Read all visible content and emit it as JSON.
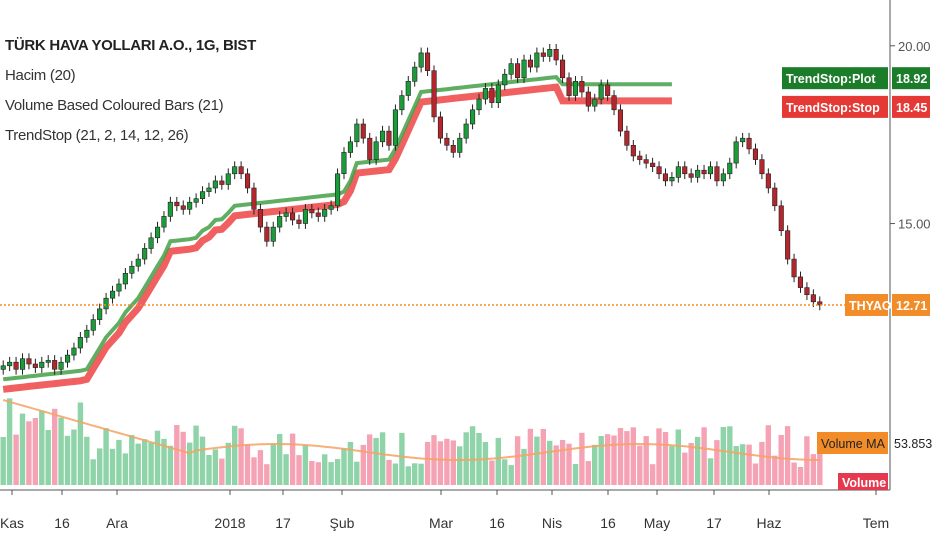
{
  "chart_data": {
    "type": "candlestick",
    "symbol_title": "TÜRK HAVA YOLLARI A.O., 1G, BIST",
    "legend": [
      "Hacim (20)",
      "Volume Based Coloured Bars (21)",
      "TrendStop (21, 2, 14, 12, 26)"
    ],
    "x_labels": [
      "Kas",
      "16",
      "Ara",
      "2018",
      "17",
      "Şub",
      "Mar",
      "16",
      "Nis",
      "16",
      "May",
      "17",
      "Haz",
      "Tem"
    ],
    "price_ticks": [
      "20.00",
      "15.00"
    ],
    "price_ylim": [
      11.5,
      20.5
    ],
    "last_price": 12.71,
    "price_series": [
      11.0,
      11.1,
      10.9,
      11.2,
      11.05,
      10.95,
      11.1,
      11.15,
      10.9,
      11.1,
      11.3,
      11.5,
      11.8,
      12.0,
      12.3,
      12.6,
      12.9,
      13.1,
      13.3,
      13.6,
      13.8,
      14.0,
      14.3,
      14.6,
      14.9,
      15.2,
      15.6,
      15.5,
      15.4,
      15.6,
      15.7,
      15.9,
      16.0,
      16.2,
      16.1,
      16.4,
      16.6,
      16.4,
      16.0,
      15.4,
      14.9,
      14.5,
      14.9,
      15.2,
      15.3,
      15.1,
      15.0,
      15.4,
      15.3,
      15.2,
      15.4,
      15.5,
      16.4,
      17.0,
      17.3,
      17.8,
      17.4,
      16.8,
      17.3,
      17.6,
      17.2,
      18.2,
      18.6,
      19.0,
      19.4,
      19.8,
      19.3,
      18.0,
      17.4,
      17.2,
      17.0,
      17.4,
      17.8,
      18.2,
      18.5,
      18.8,
      18.4,
      18.9,
      19.2,
      19.5,
      19.1,
      19.6,
      19.4,
      19.8,
      19.7,
      19.9,
      19.6,
      19.1,
      18.6,
      19.0,
      18.7,
      18.3,
      18.5,
      18.9,
      18.6,
      18.2,
      17.6,
      17.2,
      16.9,
      16.8,
      16.7,
      16.6,
      16.4,
      16.2,
      16.3,
      16.6,
      16.4,
      16.3,
      16.5,
      16.4,
      16.6,
      16.2,
      16.4,
      16.7,
      17.3,
      17.4,
      17.1,
      16.8,
      16.4,
      16.0,
      15.5,
      14.8,
      14.0,
      13.5,
      13.2,
      13.0,
      12.8,
      12.71
    ],
    "trendstop_plot": [
      18.92
    ],
    "trendstop_stop": [
      18.45
    ],
    "price_labels": [
      {
        "text": "TrendStop:Plot",
        "value": "18.92",
        "color": "#1b7d2a"
      },
      {
        "text": "TrendStop:Stop",
        "value": "18.45",
        "color": "#e53935"
      },
      {
        "text": "THYAO",
        "value": "12.71",
        "color": "#f28c28"
      }
    ],
    "volume_labels": [
      {
        "text": "Volume MA",
        "value": "53.853M",
        "color": "#f28c28"
      },
      {
        "text": "Volume",
        "value": "",
        "color": "#e53950"
      }
    ],
    "colors": {
      "up_candle": "#1a9c3a",
      "down_candle": "#b3262e",
      "plot_line": "#43a047",
      "stop_line": "#ef4444",
      "price_line": "#f28c28",
      "volume_up": "#8fd3a8",
      "volume_down": "#f5a3b4",
      "volume_ma": "#f4a261"
    }
  }
}
